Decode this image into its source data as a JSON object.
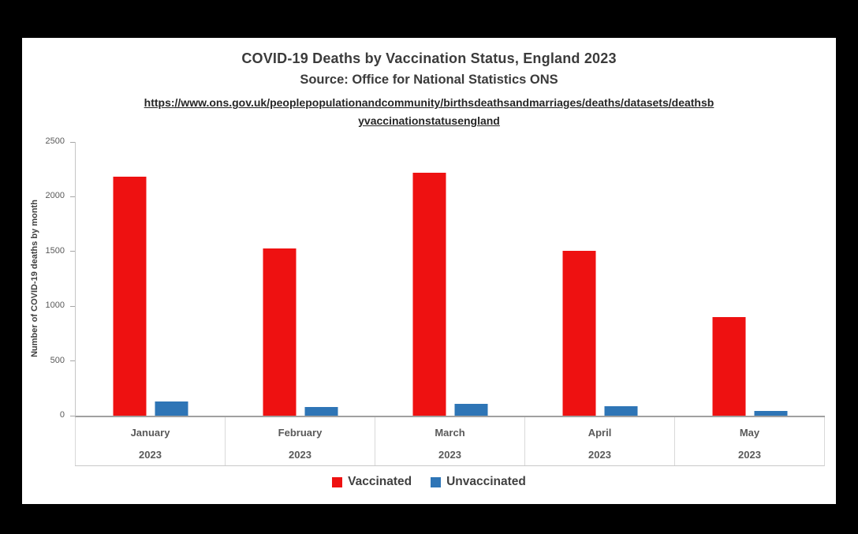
{
  "panel": {
    "page_background": "#000000",
    "background": "#ffffff"
  },
  "chart_data": {
    "type": "bar",
    "title": "COVID-19 Deaths by Vaccination Status, England 2023",
    "subtitle": "Source: Office for National Statistics ONS",
    "source_url_line1": "https://www.ons.gov.uk/peoplepopulationandcommunity/birthsdeathsandmarriages/deaths/datasets/deathsb",
    "source_url_line2": "yvaccinationstatusengland",
    "ylabel": "Number of COVID-19 deaths by month",
    "categories": [
      {
        "month": "January",
        "year": "2023"
      },
      {
        "month": "February",
        "year": "2023"
      },
      {
        "month": "March",
        "year": "2023"
      },
      {
        "month": "April",
        "year": "2023"
      },
      {
        "month": "May",
        "year": "2023"
      }
    ],
    "series": [
      {
        "name": "Vaccinated",
        "color": "#ee1111",
        "values": [
          2185,
          1525,
          2220,
          1505,
          900
        ]
      },
      {
        "name": "Unvaccinated",
        "color": "#2e75b6",
        "values": [
          130,
          80,
          105,
          90,
          40
        ]
      }
    ],
    "yticks": [
      0,
      500,
      1000,
      1500,
      2000,
      2500
    ],
    "ylim": [
      0,
      2500
    ],
    "grid": false,
    "legend_position": "bottom"
  }
}
